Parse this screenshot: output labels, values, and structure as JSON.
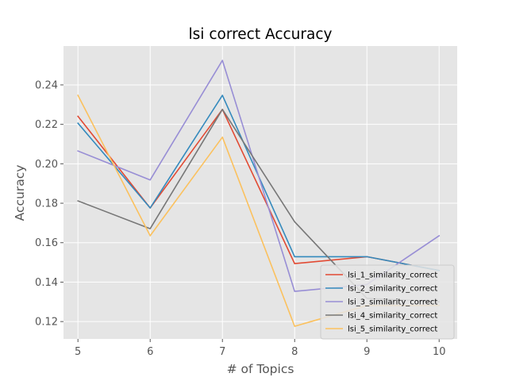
{
  "chart_data": {
    "type": "line",
    "title": "lsi correct Accuracy",
    "xlabel": "# of Topics",
    "ylabel": "Accuracy",
    "x": [
      5,
      6,
      7,
      8,
      9,
      10
    ],
    "xlim": [
      4.8,
      10.25
    ],
    "ylim": [
      0.1112,
      0.2597
    ],
    "yticks": [
      0.12,
      0.14,
      0.16,
      0.18,
      0.2,
      0.22,
      0.24
    ],
    "ytick_labels": [
      "0.12",
      "0.14",
      "0.16",
      "0.18",
      "0.20",
      "0.22",
      "0.24"
    ],
    "xtick_labels": [
      "5",
      "6",
      "7",
      "8",
      "9",
      "10"
    ],
    "grid": true,
    "style": "ggplot",
    "legend_position": "lower-right",
    "series": [
      {
        "name": "lsi_1_similarity_correct",
        "color": "#E24A33",
        "values": [
          0.2241,
          0.1776,
          0.2276,
          0.1494,
          0.1529,
          0.1459
        ]
      },
      {
        "name": "lsi_2_similarity_correct",
        "color": "#348ABD",
        "values": [
          0.2206,
          0.1776,
          0.2347,
          0.1529,
          0.1529,
          0.1459
        ]
      },
      {
        "name": "lsi_3_similarity_correct",
        "color": "#988ED5",
        "values": [
          0.2065,
          0.1918,
          0.2524,
          0.1353,
          0.1388,
          0.1635
        ]
      },
      {
        "name": "lsi_4_similarity_correct",
        "color": "#777777",
        "values": [
          0.1812,
          0.1671,
          0.2276,
          0.1706,
          0.1318,
          0.13
        ]
      },
      {
        "name": "lsi_5_similarity_correct",
        "color": "#FBC15E",
        "values": [
          0.2347,
          0.1635,
          0.2135,
          0.1176,
          0.1282,
          0.1282
        ]
      }
    ]
  }
}
